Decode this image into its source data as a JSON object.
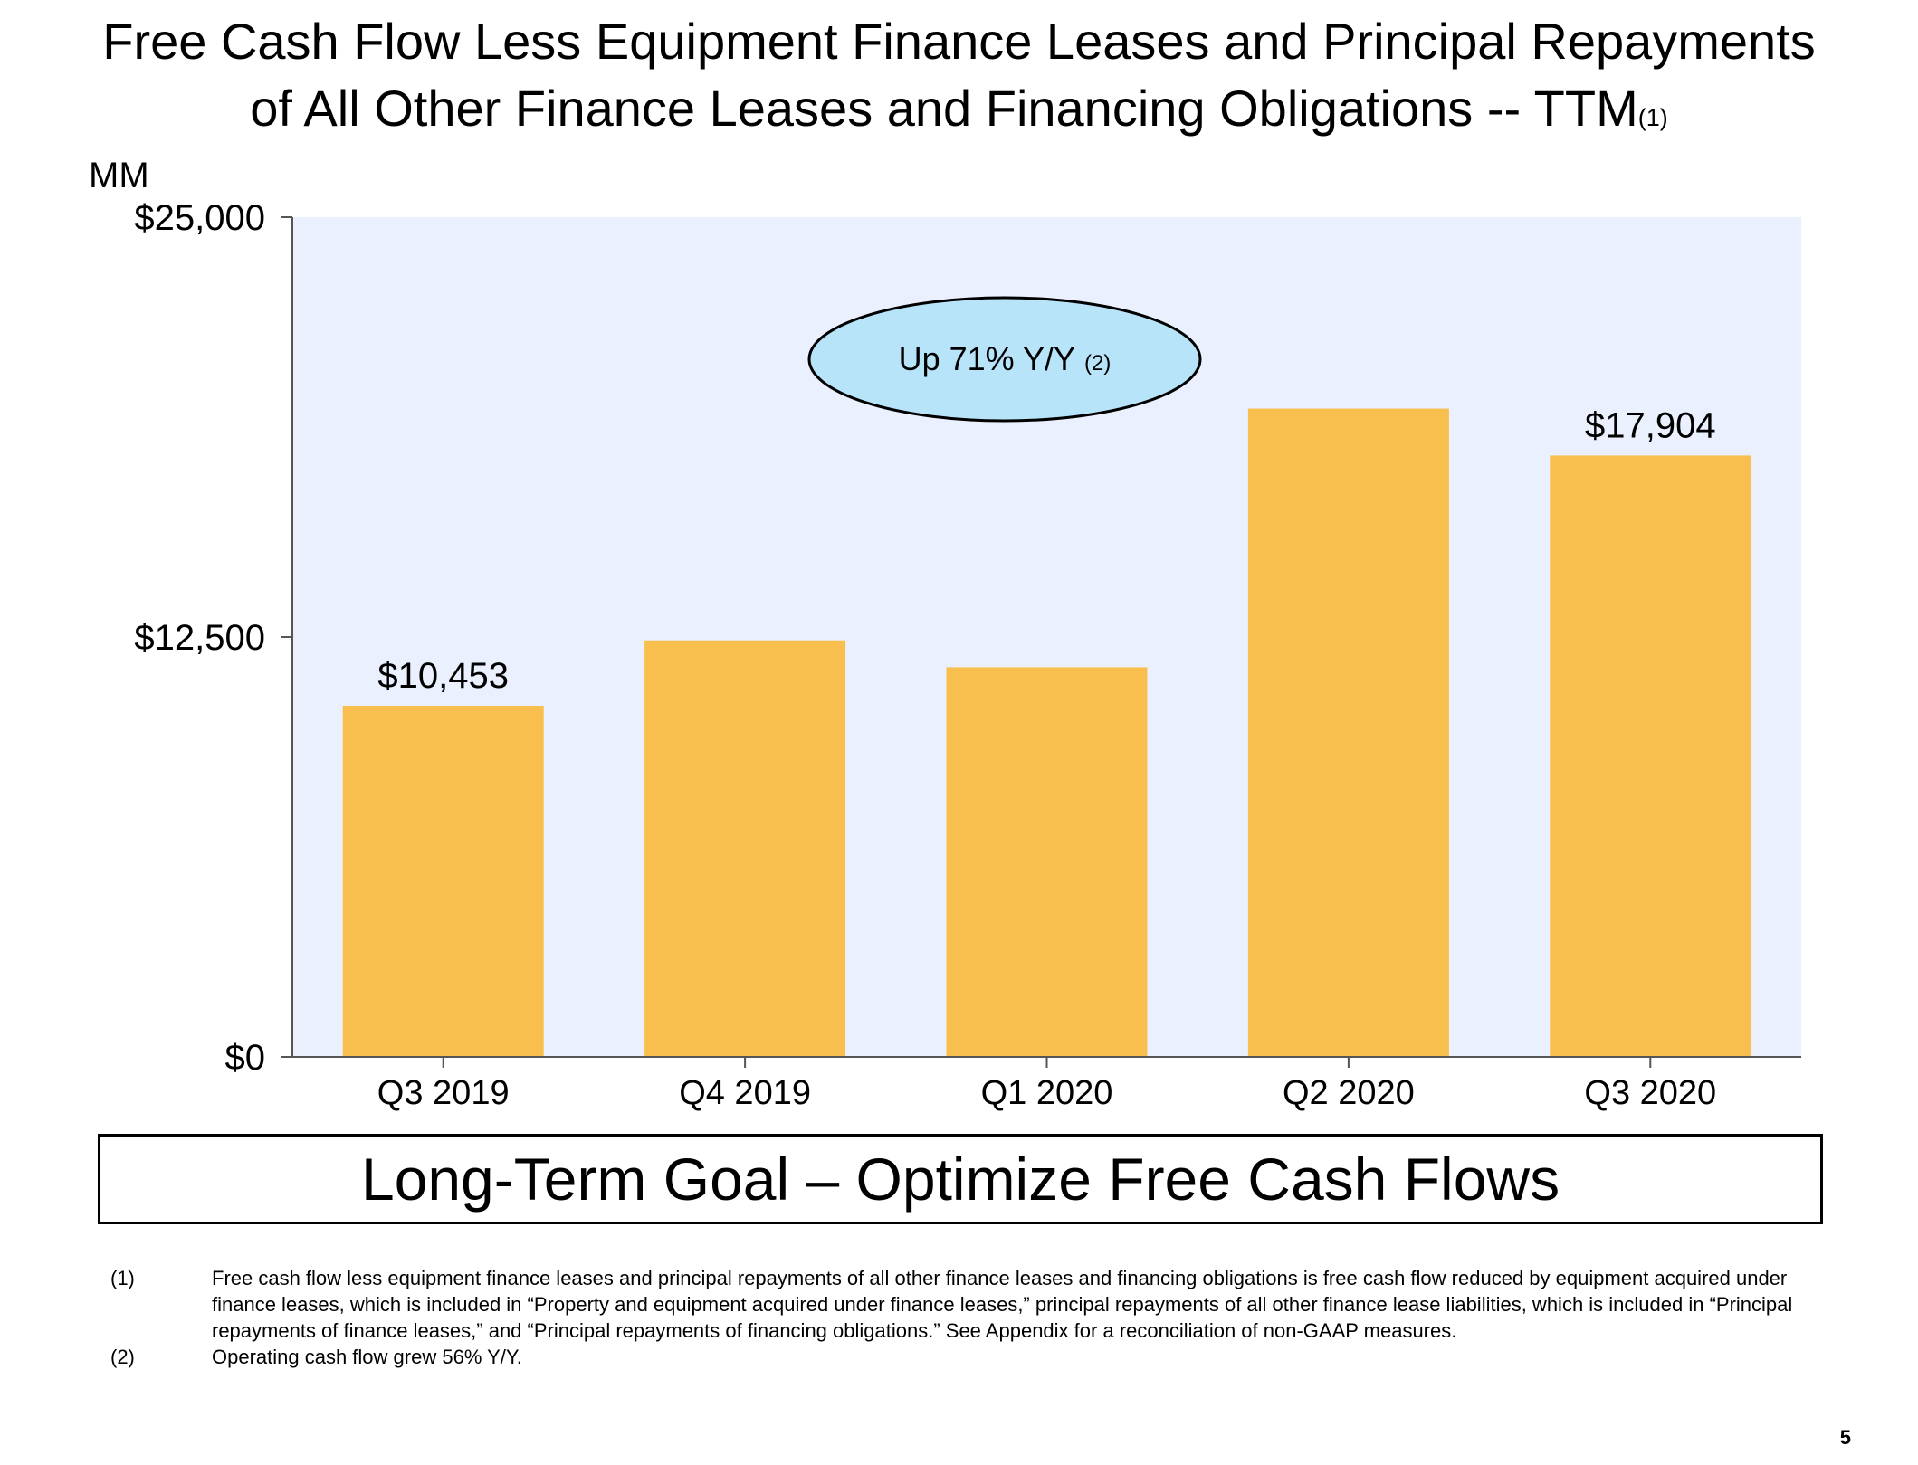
{
  "title": {
    "line1": "Free Cash Flow Less Equipment Finance Leases and Principal Repayments",
    "line2": "of All Other Finance Leases and Financing Obligations -- TTM",
    "footnote_ref": "(1)"
  },
  "chart_data": {
    "type": "bar",
    "unit_label": "MM",
    "categories": [
      "Q3 2019",
      "Q4 2019",
      "Q1 2020",
      "Q2 2020",
      "Q3 2020"
    ],
    "values": [
      10453,
      12400,
      11600,
      19300,
      17904
    ],
    "data_labels": [
      "$10,453",
      "",
      "",
      "",
      "$17,904"
    ],
    "y_ticks": [
      {
        "value": 0,
        "label": "$0"
      },
      {
        "value": 12500,
        "label": "$12,500"
      },
      {
        "value": 25000,
        "label": "$25,000"
      }
    ],
    "ylim": [
      0,
      25000
    ],
    "grid": false,
    "colors": {
      "bar": "#F8BF4E",
      "plot_background": "#EAF0FD",
      "callout_fill": "#B8E4FA"
    },
    "annotation": {
      "text": "Up 71% Y/Y",
      "footnote_ref": "(2)"
    }
  },
  "goal": "Long-Term Goal – Optimize Free Cash Flows",
  "footnotes": [
    {
      "num": "(1)",
      "text": "Free cash flow less equipment finance leases and principal repayments of all other finance leases and financing obligations is free cash flow reduced by equipment acquired under finance leases, which is included in “Property and equipment acquired under finance leases,” principal repayments of all other finance lease liabilities, which is included in “Principal repayments of finance leases,” and “Principal repayments of financing obligations.” See Appendix for a reconciliation of non-GAAP measures."
    },
    {
      "num": "(2)",
      "text": "Operating cash flow grew 56% Y/Y."
    }
  ],
  "page_number": "5"
}
